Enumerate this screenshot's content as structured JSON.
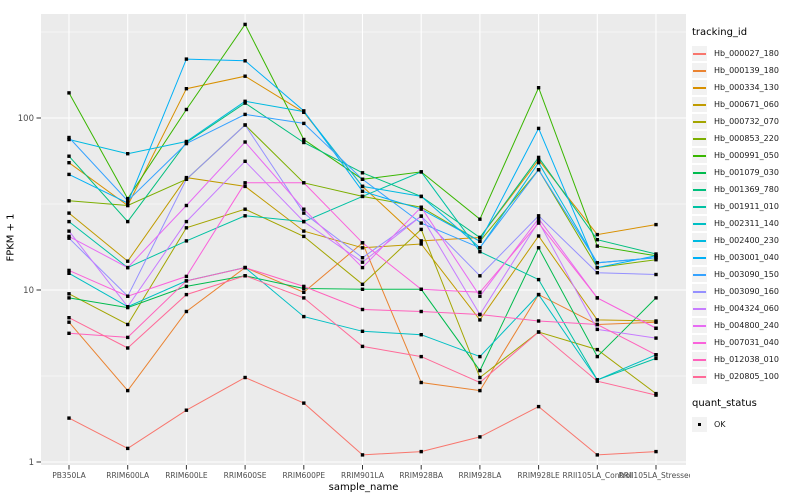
{
  "chart_data": {
    "type": "line",
    "title": "",
    "xlabel": "sample_name",
    "ylabel": "FPKM + 1",
    "y_scale": "log10",
    "y_ticks": [
      1,
      10,
      100
    ],
    "ylim": [
      0.95,
      410
    ],
    "grid": "on",
    "panel_bg": "#EBEBEB",
    "grid_color": "#FFFFFF",
    "point_shape": "filled-square",
    "point_color": "#000000",
    "axis_text_color": "#4D4D4D",
    "categories": [
      "PB350LA",
      "RRIM600LA",
      "RRIM600LE",
      "RRIM600SE",
      "RRIM600PE",
      "RRIM901LA",
      "RRIM928BA",
      "RRIM928LA",
      "RRIM928LE",
      "RRII105LA_Control",
      "RRII105LA_Stressed"
    ],
    "series": [
      {
        "name": "Hb_000027_180",
        "color": "#F8766D",
        "values": [
          1.8,
          1.2,
          2.0,
          3.1,
          2.2,
          1.1,
          1.15,
          1.4,
          2.1,
          1.1,
          1.15
        ]
      },
      {
        "name": "Hb_000139_180",
        "color": "#EA8331",
        "values": [
          6.5,
          2.6,
          7.5,
          13.5,
          9.7,
          18.8,
          2.9,
          2.6,
          9.4,
          6.3,
          6.5
        ]
      },
      {
        "name": "Hb_000334_130",
        "color": "#D89000",
        "values": [
          55,
          31,
          148,
          175,
          108,
          40,
          19.3,
          20.2,
          57,
          21,
          24
        ]
      },
      {
        "name": "Hb_000671_060",
        "color": "#C09B00",
        "values": [
          28,
          14.7,
          45,
          40,
          22,
          17.6,
          18.5,
          6.7,
          20.6,
          6.7,
          6.6
        ]
      },
      {
        "name": "Hb_000732_070",
        "color": "#A3A500",
        "values": [
          9.5,
          6.3,
          23,
          29.5,
          20.5,
          10.8,
          22.5,
          3.1,
          5.7,
          4.5,
          2.5
        ]
      },
      {
        "name": "Hb_000853_220",
        "color": "#7CAE00",
        "values": [
          33,
          31,
          44,
          91,
          42,
          35,
          30.3,
          19.2,
          50,
          13.5,
          15.0
        ]
      },
      {
        "name": "Hb_000991_050",
        "color": "#39B600",
        "values": [
          140,
          34,
          112,
          350,
          75,
          44,
          48.6,
          25.8,
          150,
          18,
          15.8
        ]
      },
      {
        "name": "Hb_001079_030",
        "color": "#00BB4E",
        "values": [
          9.0,
          7.9,
          10.5,
          12.1,
          10.2,
          10.1,
          10.1,
          3.4,
          17.6,
          4.1,
          9.0
        ]
      },
      {
        "name": "Hb_001369_780",
        "color": "#00BF7D",
        "values": [
          60,
          25,
          72,
          122,
          72,
          48,
          35,
          20.2,
          59,
          19.6,
          16.2
        ]
      },
      {
        "name": "Hb_001911_010",
        "color": "#00C1A3",
        "values": [
          25,
          13.5,
          19.3,
          27,
          25,
          35,
          48.6,
          16.7,
          11.5,
          3.0,
          4.0
        ]
      },
      {
        "name": "Hb_002311_140",
        "color": "#00BFC4",
        "values": [
          12.5,
          8.0,
          11.3,
          13.5,
          7.0,
          5.75,
          5.5,
          4.1,
          9.4,
          3.0,
          4.2
        ]
      },
      {
        "name": "Hb_002400_230",
        "color": "#00BAE0",
        "values": [
          75,
          62,
          73,
          125,
          109,
          40,
          35,
          17.6,
          55,
          14.4,
          15.4
        ]
      },
      {
        "name": "Hb_003001_040",
        "color": "#00B0F6",
        "values": [
          47,
          32,
          220,
          215,
          110,
          37.5,
          29.5,
          19.2,
          87,
          13.5,
          15.8
        ]
      },
      {
        "name": "Hb_003090_150",
        "color": "#35A2FF",
        "values": [
          77,
          33,
          71,
          105,
          93,
          44,
          24.5,
          17.6,
          50,
          14.4,
          15.4
        ]
      },
      {
        "name": "Hb_003090_160",
        "color": "#9590FF",
        "values": [
          20,
          9.2,
          44,
          91,
          28,
          15.4,
          26.9,
          12.1,
          27,
          12.6,
          12.3
        ]
      },
      {
        "name": "Hb_004324_060",
        "color": "#C77CFF",
        "values": [
          22,
          8.0,
          25,
          56,
          25,
          14.5,
          26.9,
          7.2,
          25,
          5.9,
          5.25
        ]
      },
      {
        "name": "Hb_004800_240",
        "color": "#E76BF3",
        "values": [
          20.5,
          13.5,
          31,
          72.5,
          29.5,
          13.5,
          30.3,
          9.2,
          26,
          9.0,
          6.0
        ]
      },
      {
        "name": "Hb_007031_040",
        "color": "#FA62DB",
        "values": [
          13,
          9.2,
          12,
          42,
          42,
          18.8,
          10.1,
          9.7,
          24.5,
          9.0,
          6.0
        ]
      },
      {
        "name": "Hb_012038_010",
        "color": "#FF62BC",
        "values": [
          5.6,
          5.3,
          11.3,
          13.5,
          10.5,
          7.7,
          7.5,
          7.2,
          6.6,
          6.3,
          4.2
        ]
      },
      {
        "name": "Hb_020805_100",
        "color": "#FF6A98",
        "values": [
          6.9,
          4.6,
          9.4,
          12.1,
          9.0,
          4.7,
          4.1,
          2.9,
          5.7,
          2.95,
          2.45
        ]
      }
    ]
  },
  "legend": {
    "color_title": "tracking_id",
    "shape_title": "quant_status",
    "shape_items": [
      {
        "label": "OK"
      }
    ]
  }
}
